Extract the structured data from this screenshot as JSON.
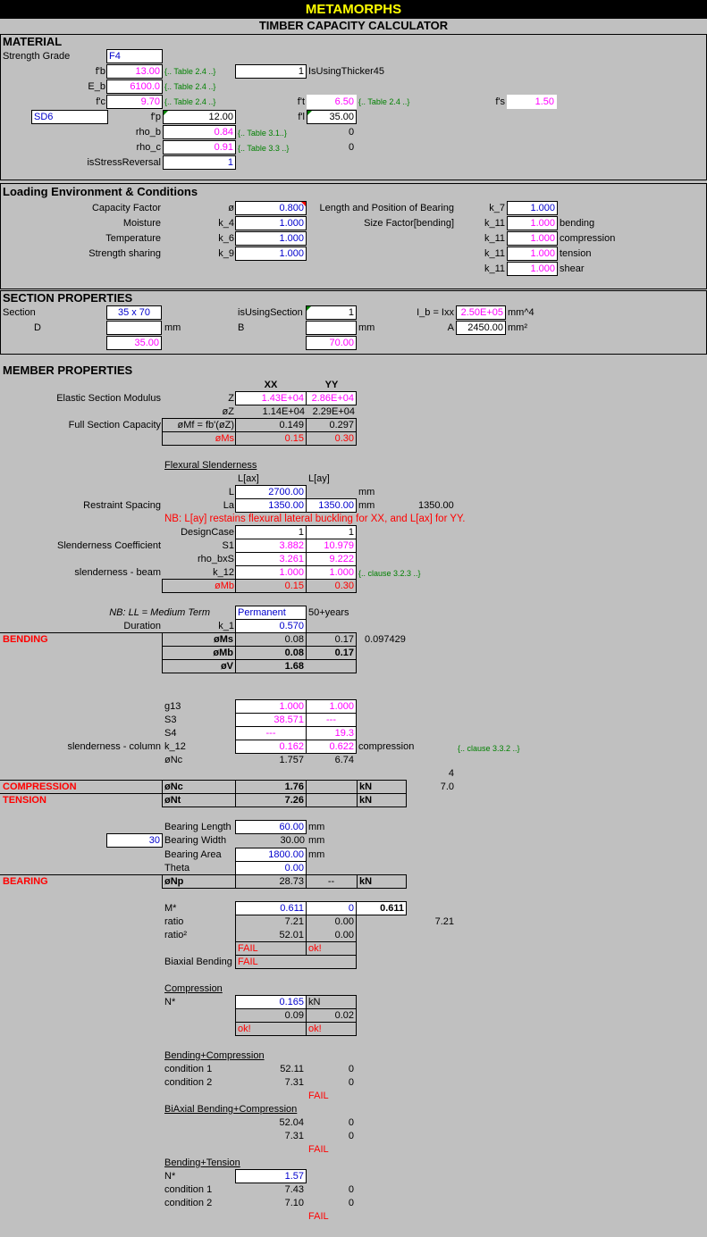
{
  "header": {
    "title": "METAMORPHS",
    "subtitle": "TIMBER CAPACITY CALCULATOR"
  },
  "material": {
    "heading": "MATERIAL",
    "strength_grade_label": "Strength Grade",
    "strength_grade": "F4",
    "fb_label": "f'b",
    "fb": "13.00",
    "fb_ref": "{.. Table 2.4 ..}",
    "thick_flag": "1",
    "thick_label": "IsUsingThicker45",
    "eb_label": "E_b",
    "eb": "6100.0",
    "eb_ref": "{.. Table 2.4 ..}",
    "fc_label": "f'c",
    "fc": "9.70",
    "fc_ref": "{.. Table 2.4 ..}",
    "ft_label": "f't",
    "ft": "6.50",
    "ft_ref": "{.. Table 2.4 ..}",
    "fs_label": "f's",
    "fs": "1.50",
    "species": "SD6",
    "fp_label": "f'p",
    "fp": "12.00",
    "fl_label": "f'l",
    "fl": "35.00",
    "rho_b_label": "rho_b",
    "rho_b": "0.84",
    "rho_b_ref": "{.. Table 3.1..}",
    "rho_b_side": "0",
    "rho_c_label": "rho_c",
    "rho_c": "0.91",
    "rho_c_ref": "{.. Table 3.3 ..}",
    "rho_c_side": "0",
    "stress_rev_label": "isStressReversal",
    "stress_rev": "1"
  },
  "loading": {
    "heading": "Loading Environment & Conditions",
    "rows": [
      {
        "label": "Capacity Factor",
        "sym": "ø",
        "val": "0.800"
      },
      {
        "label": "Moisture",
        "sym": "k_4",
        "val": "1.000"
      },
      {
        "label": "Temperature",
        "sym": "k_6",
        "val": "1.000"
      },
      {
        "label": "Strength sharing",
        "sym": "k_9",
        "val": "1.000"
      }
    ],
    "bearing_label": "Length and Position of Bearing",
    "k7_label": "k_7",
    "k7": "1.000",
    "size_label": "Size Factor[bending]",
    "k11": [
      {
        "sym": "k_11",
        "val": "1.000",
        "note": "bending"
      },
      {
        "sym": "k_11",
        "val": "1.000",
        "note": "compression"
      },
      {
        "sym": "k_11",
        "val": "1.000",
        "note": "tension"
      },
      {
        "sym": "k_11",
        "val": "1.000",
        "note": "shear"
      }
    ]
  },
  "section": {
    "heading": "SECTION PROPERTIES",
    "section_label": "Section",
    "section": "35 x 70",
    "using_label": "isUsingSection",
    "using": "1",
    "ib_label": "I_b = Ixx",
    "ib": "2.50E+05",
    "ib_unit": "mm^4",
    "d_label": "D",
    "d_unit": "mm",
    "d": "35.00",
    "b_label": "B",
    "b_unit": "mm",
    "b": "70.00",
    "a_label": "A",
    "a": "2450.00",
    "a_unit": "mm²"
  },
  "member": {
    "heading": "MEMBER PROPERTIES",
    "col_xx": "XX",
    "col_yy": "YY",
    "esm_label": "Elastic Section Modulus",
    "z_label": "Z",
    "z_xx": "1.43E+04",
    "z_yy": "2.86E+04",
    "oz_label": "øZ",
    "oz_xx": "1.14E+04",
    "oz_yy": "2.29E+04",
    "fsc_label": "Full Section Capacity",
    "omf_label": "øMf = fb'(øZ)",
    "omf_xx": "0.149",
    "omf_yy": "0.297",
    "oms_label": "øMs",
    "oms_xx": "0.15",
    "oms_yy": "0.30",
    "flex_label": "Flexural Slenderness",
    "lax": "L[ax]",
    "lay": "L[ay]",
    "l_label": "L",
    "l_val": "2700.00",
    "l_unit": "mm",
    "rs_label": "Restraint Spacing",
    "la_label": "La",
    "la_xx": "1350.00",
    "la_yy": "1350.00",
    "la_unit": "mm",
    "la_side": "1350.00",
    "nb_note": "NB: L[ay] restains flexural lateral buckling for XX, and L[ax] for YY.",
    "dc_label": "DesignCase",
    "dc_xx": "1",
    "dc_yy": "1",
    "sc_label": "Slenderness Coefficient",
    "s1_label": "S1",
    "s1_xx": "3.882",
    "s1_yy": "10.979",
    "rbs_label": "rho_bxS",
    "rbs_xx": "3.261",
    "rbs_yy": "9.222",
    "sb_label": "slenderness - beam",
    "k12_label": "k_12",
    "k12_xx": "1.000",
    "k12_yy": "1.000",
    "k12_ref": "{.. clause 3.2.3 ..}",
    "omb_label": "øMb",
    "omb_xx": "0.15",
    "omb_yy": "0.30"
  },
  "duration": {
    "nb": "NB: LL = Medium Term",
    "term": "Permanent",
    "years": "50+years",
    "dur_label": "Duration",
    "k1_label": "k_1",
    "k1": "0.570"
  },
  "bending": {
    "label": "BENDING",
    "oms_label": "øMs",
    "oms_xx": "0.08",
    "oms_yy": "0.17",
    "oms_side": "0.097429",
    "omb_label": "øMb",
    "omb_xx": "0.08",
    "omb_yy": "0.17",
    "ov_label": "øV",
    "ov": "1.68"
  },
  "column": {
    "g13_label": "g13",
    "g13_xx": "1.000",
    "g13_yy": "1.000",
    "s3_label": "S3",
    "s3_xx": "38.571",
    "s3_yy": "---",
    "s4_label": "S4",
    "s4_xx": "---",
    "s4_yy": "19.3",
    "sc_label": "slenderness - column",
    "k12_label": "k_12",
    "k12_xx": "0.162",
    "k12_yy": "0.622",
    "k12_note": "compression",
    "k12_ref": "{.. clause 3.3.2 ..}",
    "onc_label": "øNc",
    "onc_xx": "1.757",
    "onc_yy": "6.74",
    "side4": "4"
  },
  "compression": {
    "label": "COMPRESSION",
    "sym": "øNc",
    "val": "1.76",
    "unit": "kN",
    "side": "7.0"
  },
  "tension": {
    "label": "TENSION",
    "sym": "øNt",
    "val": "7.26",
    "unit": "kN"
  },
  "bearing": {
    "bl_label": "Bearing Length",
    "bl": "60.00",
    "bl_unit": "mm",
    "bw_in": "30",
    "bw_label": "Bearing Width",
    "bw": "30.00",
    "bw_unit": "mm",
    "ba_label": "Bearing Area",
    "ba": "1800.00",
    "ba_unit": "mm",
    "theta_label": "Theta",
    "theta": "0.00",
    "label": "BEARING",
    "onp_label": "øNp",
    "onp": "28.73",
    "onp_yy": "--",
    "unit": "kN"
  },
  "checks": {
    "m_label": "M*",
    "m_xx": "0.611",
    "m_yy": "0",
    "m_max": "0.611",
    "ratio_label": "ratio",
    "ratio_xx": "7.21",
    "ratio_yy": "0.00",
    "ratio_side": "7.21",
    "ratio2_label": "ratio²",
    "ratio2_xx": "52.01",
    "ratio2_yy": "0.00",
    "res_xx": "FAIL",
    "res_yy": "ok!",
    "biax_label": "Biaxial Bending",
    "biax": "FAIL",
    "comp_label": "Compression",
    "n_label": "N*",
    "n": "0.165",
    "n_unit": "kN",
    "n_xx": "0.09",
    "n_yy": "0.02",
    "n_res_xx": "ok!",
    "n_res_yy": "ok!"
  },
  "combos": {
    "bc_label": "Bending+Compression",
    "c1_label": "condition 1",
    "bc_c1": "52.11",
    "bc_c1b": "0",
    "c2_label": "condition 2",
    "bc_c2": "7.31",
    "bc_c2b": "0",
    "bc_res": "FAIL",
    "bbc_label": "BiAxial Bending+Compression",
    "bbc_c1": "52.04",
    "bbc_c1b": "0",
    "bbc_c2": "7.31",
    "bbc_c2b": "0",
    "bbc_res": "FAIL",
    "bt_label": "Bending+Tension",
    "bt_n_label": "N*",
    "bt_n": "1.57",
    "bt_c1": "7.43",
    "bt_c1b": "0",
    "bt_c2": "7.10",
    "bt_c2b": "0",
    "bt_res": "FAIL"
  }
}
